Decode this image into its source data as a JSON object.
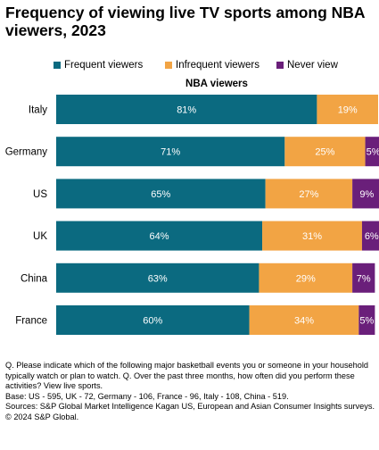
{
  "title": "Frequency of viewing live TV sports among NBA viewers, 2023",
  "chart_data": {
    "type": "bar",
    "orientation": "horizontal",
    "stacked": true,
    "subtitle": "NBA viewers",
    "categories": [
      "Italy",
      "Germany",
      "US",
      "UK",
      "China",
      "France"
    ],
    "series": [
      {
        "name": "Frequent viewers",
        "color": "#0b6a80",
        "values": [
          81,
          71,
          65,
          64,
          63,
          60
        ]
      },
      {
        "name": "Infrequent viewers",
        "color": "#f2a444",
        "values": [
          19,
          25,
          27,
          31,
          29,
          34
        ]
      },
      {
        "name": "Never view",
        "color": "#6a1f7a",
        "values": [
          0,
          5,
          9,
          6,
          7,
          5
        ]
      }
    ],
    "value_suffix": "%",
    "xlim": [
      0,
      100
    ],
    "legend_position": "top"
  },
  "notes": [
    "Q. Please indicate which of the following major basketball events you or someone in your household typically watch or plan to watch. Q. Over the past three months, how often did you perform these activities? View live sports.",
    "Base: US - 595, UK - 72, Germany - 106, France - 96, Italy - 108, China - 519.",
    "Sources: S&P Global Market Intelligence Kagan US, European and Asian Consumer Insights surveys.",
    "© 2024 S&P Global."
  ]
}
